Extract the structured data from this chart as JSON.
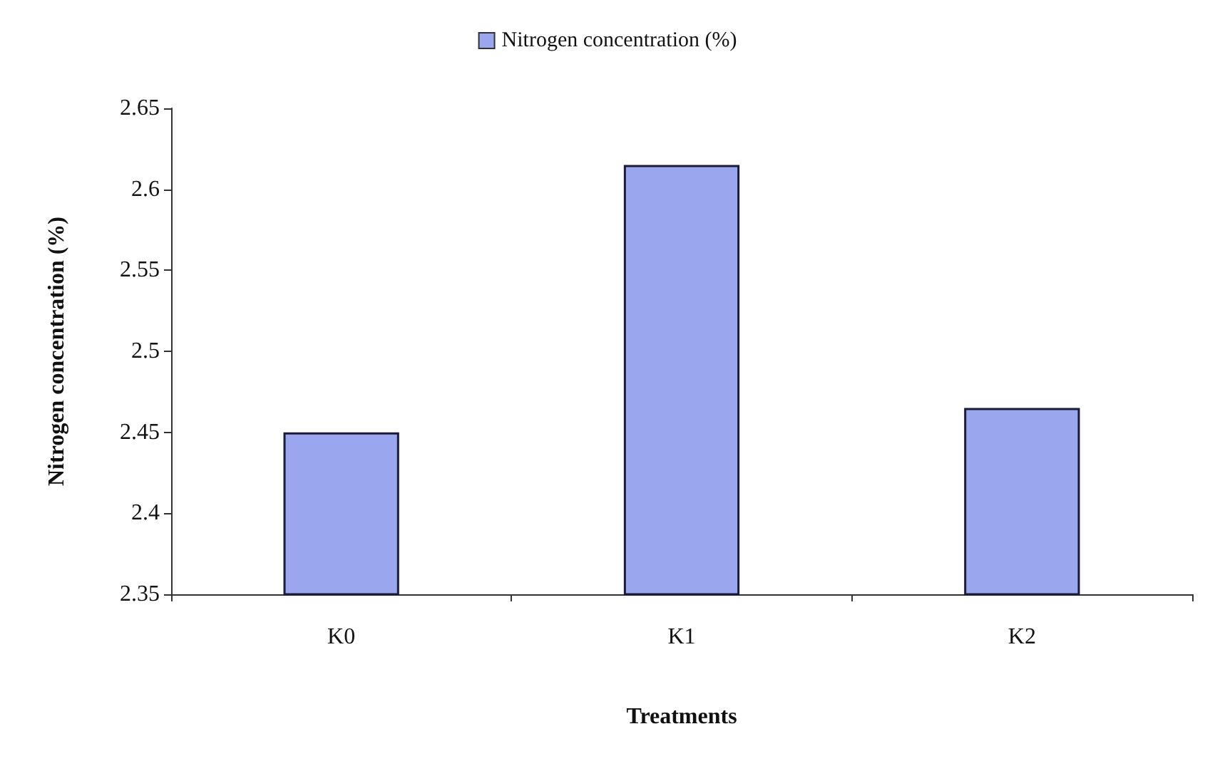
{
  "chart_data": {
    "type": "bar",
    "xlabel": "Treatments",
    "ylabel": "Nitrogen concentration (%)",
    "categories": [
      "K0",
      "K1",
      "K2"
    ],
    "series": [
      {
        "name": "Nitrogen concentration (%)",
        "color": "#9aa6ee",
        "values": [
          2.45,
          2.615,
          2.465
        ]
      }
    ],
    "ylim": [
      2.35,
      2.65
    ],
    "yticks": [
      2.35,
      2.4,
      2.45,
      2.5,
      2.55,
      2.6,
      2.65
    ],
    "grid": false,
    "legend": "top"
  }
}
